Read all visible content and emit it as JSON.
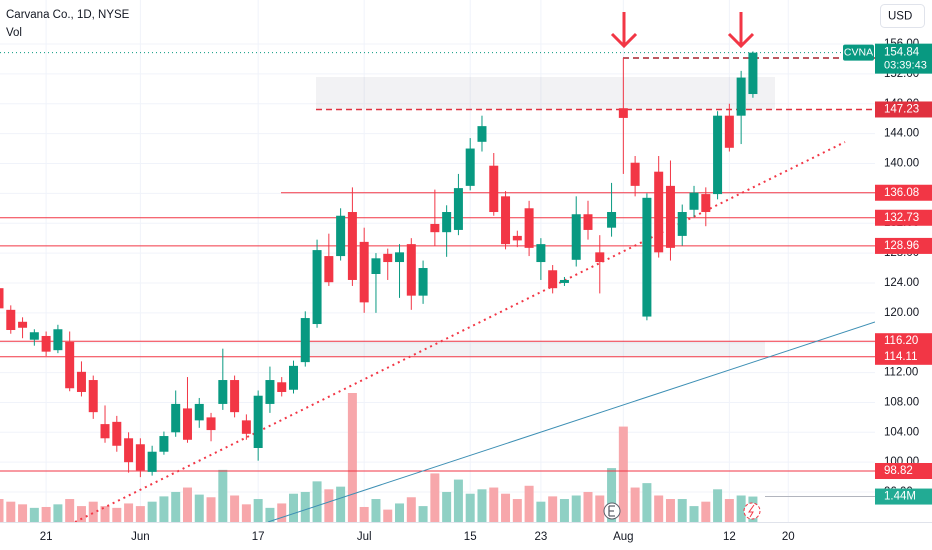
{
  "chart_data": {
    "type": "candlestick",
    "title": "Carvana Co., 1D, NYSE",
    "volume_name": "Vol",
    "currency": "USD",
    "symbol": "CVNA",
    "countdown": "03:39:43",
    "up_color": "#089981",
    "down_color": "#f23645",
    "volume_up_color": "#8fd0c4",
    "volume_down_color": "#f7a7ab",
    "grid": true,
    "categories": [
      null,
      null,
      null,
      null,
      "21",
      null,
      null,
      null,
      null,
      null,
      null,
      null,
      "Jun",
      null,
      null,
      null,
      null,
      null,
      null,
      null,
      null,
      null,
      "17",
      null,
      null,
      null,
      null,
      null,
      null,
      null,
      null,
      "Jul",
      null,
      null,
      null,
      null,
      null,
      null,
      null,
      null,
      "15",
      null,
      null,
      null,
      null,
      null,
      "23",
      null,
      null,
      null,
      null,
      null,
      null,
      "Aug",
      null,
      null,
      null,
      null,
      null,
      null,
      null,
      null,
      "12",
      null,
      null,
      null,
      null,
      "20"
    ],
    "open": [
      123.3,
      120.4,
      118.8,
      116.4,
      116.9,
      115.0,
      116.1,
      112.1,
      111.0,
      105.1,
      105.4,
      103.2,
      102.4,
      98.7,
      101.4,
      104.0,
      107.2,
      105.6,
      106.0,
      107.8,
      111.0,
      105.6,
      101.9,
      107.8,
      110.7,
      109.7,
      113.4,
      118.5,
      127.6,
      127.6,
      133.5,
      129.5,
      125.2,
      127.9,
      126.8,
      129.2,
      122.3,
      131.9,
      130.8,
      131.1,
      137.0,
      142.9,
      139.7,
      135.6,
      130.3,
      134.0,
      126.8,
      125.7,
      124.0,
      127.1,
      133.2,
      128.1,
      131.4,
      147.4,
      140.1,
      119.5,
      138.9,
      137.0,
      130.3,
      133.8,
      135.9,
      135.9,
      146.4,
      146.4,
      149.3,
      null,
      null,
      null
    ],
    "high": [
      124.0,
      121.0,
      119.4,
      117.8,
      117.5,
      118.4,
      117.5,
      113.5,
      111.6,
      107.6,
      106.2,
      104.0,
      103.2,
      102.2,
      104.1,
      109.6,
      111.4,
      108.6,
      106.6,
      115.2,
      111.6,
      106.4,
      109.6,
      112.8,
      111.4,
      113.6,
      120.2,
      129.8,
      130.6,
      134.0,
      136.8,
      131.4,
      128.0,
      128.6,
      129.2,
      130.0,
      127.0,
      136.5,
      134.4,
      138.6,
      143.4,
      146.4,
      141.4,
      136.3,
      131.0,
      135.0,
      130.0,
      126.4,
      124.8,
      135.6,
      135.0,
      130.4,
      137.4,
      154.12,
      141.0,
      136.0,
      141.0,
      140.4,
      134.5,
      137.0,
      136.8,
      147.0,
      148.0,
      152.4,
      155.0,
      null,
      null,
      null
    ],
    "low": [
      119.9,
      117.2,
      116.6,
      115.6,
      114.2,
      114.6,
      109.5,
      108.8,
      105.8,
      102.6,
      101.4,
      98.6,
      98.0,
      98.2,
      101.0,
      103.4,
      102.6,
      104.6,
      102.8,
      107.0,
      106.0,
      103.0,
      100.2,
      106.6,
      108.8,
      109.2,
      112.8,
      118.0,
      123.6,
      127.0,
      123.6,
      120.0,
      120.0,
      124.4,
      122.0,
      120.4,
      121.2,
      129.0,
      127.5,
      130.4,
      136.4,
      141.6,
      133.0,
      128.5,
      128.8,
      127.6,
      124.4,
      122.6,
      123.6,
      126.2,
      129.8,
      122.6,
      130.2,
      138.6,
      135.6,
      119.0,
      127.4,
      127.0,
      129.0,
      132.8,
      131.6,
      135.2,
      141.6,
      142.6,
      148.8,
      null,
      null,
      null
    ],
    "close": [
      120.6,
      117.7,
      118.0,
      117.4,
      114.8,
      117.8,
      109.9,
      109.4,
      106.7,
      103.2,
      102.2,
      100.0,
      98.9,
      101.4,
      103.5,
      107.8,
      103.0,
      107.8,
      104.3,
      111.0,
      106.7,
      103.8,
      108.9,
      111.0,
      109.4,
      112.9,
      119.3,
      128.4,
      124.1,
      133.0,
      124.4,
      121.4,
      127.3,
      126.8,
      128.1,
      122.3,
      126.0,
      130.8,
      133.5,
      136.7,
      142.0,
      145.0,
      133.5,
      129.2,
      129.7,
      128.7,
      129.2,
      123.3,
      124.4,
      133.2,
      131.1,
      126.8,
      133.5,
      146.1,
      137.0,
      135.4,
      128.1,
      128.7,
      133.5,
      136.1,
      133.5,
      146.4,
      142.1,
      151.5,
      154.84,
      null,
      null,
      null
    ],
    "volume": {
      "values": [
        1300000,
        1150000,
        1000000,
        800000,
        850000,
        1000000,
        1300000,
        900000,
        1150000,
        900000,
        800000,
        1050000,
        900000,
        1150000,
        1450000,
        1700000,
        1950000,
        1550000,
        1400000,
        2950000,
        1500000,
        1000000,
        1300000,
        800000,
        1050000,
        1600000,
        1700000,
        2300000,
        1850000,
        2000000,
        7300000,
        850000,
        1300000,
        700000,
        1050000,
        1400000,
        900000,
        2750000,
        1700000,
        2400000,
        1600000,
        1850000,
        1950000,
        1600000,
        1300000,
        2050000,
        1150000,
        1450000,
        1300000,
        1500000,
        1700000,
        1500000,
        3050000,
        5400000,
        1950000,
        2200000,
        1500000,
        1300000,
        1300000,
        900000,
        1150000,
        1850000,
        1300000,
        1500000,
        1440000,
        null,
        null,
        null
      ],
      "value_labels": [
        null,
        null,
        null,
        null,
        null,
        null,
        null,
        null,
        null,
        null,
        null,
        null,
        null,
        null,
        null,
        null,
        null,
        null,
        null,
        null,
        null,
        null,
        null,
        null,
        null,
        null,
        null,
        null,
        null,
        null,
        null,
        null,
        null,
        null,
        null,
        null,
        null,
        null,
        null,
        null,
        null,
        null,
        null,
        null,
        null,
        null,
        null,
        null,
        null,
        null,
        null,
        null,
        null,
        null,
        null,
        null,
        null,
        null,
        null,
        null,
        null,
        null,
        null,
        null,
        "1.44M",
        null,
        null,
        null
      ]
    },
    "ylim": [
      91.99,
      161.89
    ],
    "yticks": [
      {
        "value": 96,
        "label": "96.00"
      },
      {
        "value": 100,
        "label": "100.00"
      },
      {
        "value": 104,
        "label": "104.00"
      },
      {
        "value": 108,
        "label": "108.00"
      },
      {
        "value": 112,
        "label": "112.00"
      },
      {
        "value": 116,
        "label": "116.00"
      },
      {
        "value": 120,
        "label": "120.00"
      },
      {
        "value": 124,
        "label": "124.00"
      },
      {
        "value": 128,
        "label": "128.00"
      },
      {
        "value": 132,
        "label": "132.00"
      },
      {
        "value": 136,
        "label": "136.00"
      },
      {
        "value": 140,
        "label": "140.00"
      },
      {
        "value": 144,
        "label": "144.00"
      },
      {
        "value": 148,
        "label": "148.00"
      },
      {
        "value": 152,
        "label": "152.00"
      },
      {
        "value": 156,
        "label": "156.00"
      }
    ],
    "levels": [
      {
        "value": 154.12,
        "label": "154.12",
        "color": "#a8232e",
        "dashed": true
      },
      {
        "value": 147.23,
        "label": "147.23",
        "color": "#e0313f",
        "dashed": true
      },
      {
        "value": 136.08,
        "label": "136.08",
        "color": "#f23645",
        "dashed": false
      },
      {
        "value": 132.73,
        "label": "132.73",
        "color": "#f23645",
        "dashed": false
      },
      {
        "value": 128.96,
        "label": "128.96",
        "color": "#f23645",
        "dashed": false
      },
      {
        "value": 116.2,
        "label": "116.20",
        "color": "#f23645",
        "dashed": false
      },
      {
        "value": 114.11,
        "label": "114.11",
        "color": "#f23645",
        "dashed": false
      },
      {
        "value": 98.82,
        "label": "98.82",
        "color": "#f23645",
        "dashed": false
      }
    ],
    "zones": [
      {
        "low": 147.23,
        "high": 151.58
      },
      {
        "low": 114.11,
        "high": 116.2
      }
    ]
  }
}
